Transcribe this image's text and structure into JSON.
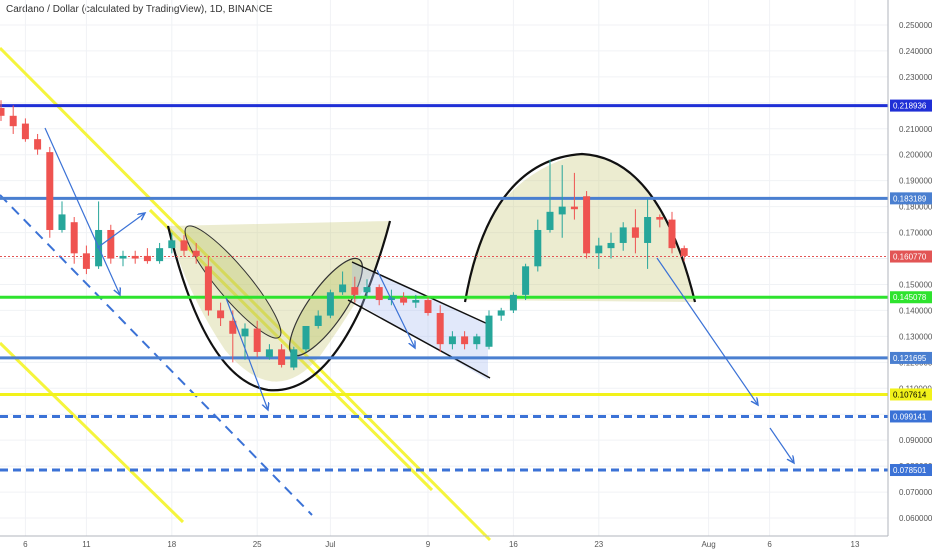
{
  "chart_data": {
    "type": "candlestick",
    "title": "Cardano / Dollar (calculated by TradingView), 1D, BINANCE",
    "ylim": [
      0.055,
      0.255
    ],
    "y_ticks": [
      "0.250000",
      "0.240000",
      "0.230000",
      "0.220000",
      "0.210000",
      "0.200000",
      "0.190000",
      "0.180000",
      "0.170000",
      "0.160000",
      "0.150000",
      "0.140000",
      "0.130000",
      "0.120000",
      "0.110000",
      "0.100000",
      "0.090000",
      "0.080000",
      "0.070000",
      "0.060000"
    ],
    "x_ticks": [
      "6",
      "11",
      "18",
      "25",
      "Jul",
      "9",
      "16",
      "23",
      "Aug",
      "6",
      "13"
    ],
    "candles": [
      {
        "date": "Jun 4",
        "open": 0.218,
        "high": 0.221,
        "low": 0.213,
        "close": 0.215
      },
      {
        "date": "Jun 5",
        "open": 0.215,
        "high": 0.219,
        "low": 0.208,
        "close": 0.211
      },
      {
        "date": "Jun 6",
        "open": 0.212,
        "high": 0.214,
        "low": 0.205,
        "close": 0.206
      },
      {
        "date": "Jun 7",
        "open": 0.206,
        "high": 0.208,
        "low": 0.2,
        "close": 0.202
      },
      {
        "date": "Jun 8",
        "open": 0.201,
        "high": 0.203,
        "low": 0.168,
        "close": 0.171
      },
      {
        "date": "Jun 9",
        "open": 0.171,
        "high": 0.182,
        "low": 0.17,
        "close": 0.177
      },
      {
        "date": "Jun 10",
        "open": 0.174,
        "high": 0.176,
        "low": 0.158,
        "close": 0.162
      },
      {
        "date": "Jun 11",
        "open": 0.162,
        "high": 0.165,
        "low": 0.154,
        "close": 0.156
      },
      {
        "date": "Jun 12",
        "open": 0.157,
        "high": 0.182,
        "low": 0.156,
        "close": 0.171
      },
      {
        "date": "Jun 13",
        "open": 0.171,
        "high": 0.173,
        "low": 0.158,
        "close": 0.16
      },
      {
        "date": "Jun 14",
        "open": 0.16,
        "high": 0.163,
        "low": 0.157,
        "close": 0.161
      },
      {
        "date": "Jun 15",
        "open": 0.161,
        "high": 0.163,
        "low": 0.158,
        "close": 0.16
      },
      {
        "date": "Jun 16",
        "open": 0.161,
        "high": 0.164,
        "low": 0.158,
        "close": 0.159
      },
      {
        "date": "Jun 17",
        "open": 0.159,
        "high": 0.166,
        "low": 0.158,
        "close": 0.164
      },
      {
        "date": "Jun 18",
        "open": 0.164,
        "high": 0.17,
        "low": 0.162,
        "close": 0.167
      },
      {
        "date": "Jun 19",
        "open": 0.167,
        "high": 0.169,
        "low": 0.161,
        "close": 0.163
      },
      {
        "date": "Jun 20",
        "open": 0.163,
        "high": 0.166,
        "low": 0.158,
        "close": 0.161
      },
      {
        "date": "Jun 21",
        "open": 0.157,
        "high": 0.161,
        "low": 0.138,
        "close": 0.14
      },
      {
        "date": "Jun 22",
        "open": 0.14,
        "high": 0.143,
        "low": 0.134,
        "close": 0.137
      },
      {
        "date": "Jun 23",
        "open": 0.136,
        "high": 0.14,
        "low": 0.12,
        "close": 0.131
      },
      {
        "date": "Jun 24",
        "open": 0.13,
        "high": 0.135,
        "low": 0.121,
        "close": 0.133
      },
      {
        "date": "Jun 25",
        "open": 0.133,
        "high": 0.136,
        "low": 0.122,
        "close": 0.124
      },
      {
        "date": "Jun 26",
        "open": 0.122,
        "high": 0.127,
        "low": 0.121,
        "close": 0.125
      },
      {
        "date": "Jun 27",
        "open": 0.125,
        "high": 0.127,
        "low": 0.118,
        "close": 0.119
      },
      {
        "date": "Jun 28",
        "open": 0.118,
        "high": 0.126,
        "low": 0.117,
        "close": 0.125
      },
      {
        "date": "Jun 29",
        "open": 0.125,
        "high": 0.133,
        "low": 0.124,
        "close": 0.134
      },
      {
        "date": "Jun 30",
        "open": 0.134,
        "high": 0.14,
        "low": 0.133,
        "close": 0.138
      },
      {
        "date": "Jul 1",
        "open": 0.138,
        "high": 0.148,
        "low": 0.137,
        "close": 0.147
      },
      {
        "date": "Jul 2",
        "open": 0.147,
        "high": 0.155,
        "low": 0.146,
        "close": 0.15
      },
      {
        "date": "Jul 3",
        "open": 0.149,
        "high": 0.153,
        "low": 0.143,
        "close": 0.146
      },
      {
        "date": "Jul 4",
        "open": 0.147,
        "high": 0.152,
        "low": 0.145,
        "close": 0.149
      },
      {
        "date": "Jul 5",
        "open": 0.149,
        "high": 0.15,
        "low": 0.142,
        "close": 0.144
      },
      {
        "date": "Jul 6",
        "open": 0.144,
        "high": 0.148,
        "low": 0.142,
        "close": 0.145
      },
      {
        "date": "Jul 7",
        "open": 0.145,
        "high": 0.147,
        "low": 0.142,
        "close": 0.143
      },
      {
        "date": "Jul 8",
        "open": 0.143,
        "high": 0.146,
        "low": 0.141,
        "close": 0.144
      },
      {
        "date": "Jul 9",
        "open": 0.144,
        "high": 0.145,
        "low": 0.138,
        "close": 0.139
      },
      {
        "date": "Jul 10",
        "open": 0.139,
        "high": 0.142,
        "low": 0.124,
        "close": 0.127
      },
      {
        "date": "Jul 11",
        "open": 0.127,
        "high": 0.132,
        "low": 0.125,
        "close": 0.13
      },
      {
        "date": "Jul 12",
        "open": 0.13,
        "high": 0.132,
        "low": 0.125,
        "close": 0.127
      },
      {
        "date": "Jul 13",
        "open": 0.127,
        "high": 0.131,
        "low": 0.125,
        "close": 0.13
      },
      {
        "date": "Jul 14",
        "open": 0.126,
        "high": 0.14,
        "low": 0.125,
        "close": 0.138
      },
      {
        "date": "Jul 15",
        "open": 0.138,
        "high": 0.141,
        "low": 0.136,
        "close": 0.14
      },
      {
        "date": "Jul 16",
        "open": 0.14,
        "high": 0.147,
        "low": 0.139,
        "close": 0.146
      },
      {
        "date": "Jul 17",
        "open": 0.146,
        "high": 0.158,
        "low": 0.144,
        "close": 0.157
      },
      {
        "date": "Jul 18",
        "open": 0.157,
        "high": 0.175,
        "low": 0.155,
        "close": 0.171
      },
      {
        "date": "Jul 19",
        "open": 0.171,
        "high": 0.198,
        "low": 0.17,
        "close": 0.178
      },
      {
        "date": "Jul 20",
        "open": 0.177,
        "high": 0.196,
        "low": 0.168,
        "close": 0.18
      },
      {
        "date": "Jul 21",
        "open": 0.18,
        "high": 0.193,
        "low": 0.175,
        "close": 0.179
      },
      {
        "date": "Jul 22",
        "open": 0.184,
        "high": 0.186,
        "low": 0.16,
        "close": 0.162
      },
      {
        "date": "Jul 23",
        "open": 0.162,
        "high": 0.168,
        "low": 0.156,
        "close": 0.165
      },
      {
        "date": "Jul 24",
        "open": 0.164,
        "high": 0.17,
        "low": 0.16,
        "close": 0.166
      },
      {
        "date": "Jul 25",
        "open": 0.166,
        "high": 0.174,
        "low": 0.163,
        "close": 0.172
      },
      {
        "date": "Jul 26",
        "open": 0.172,
        "high": 0.179,
        "low": 0.162,
        "close": 0.168
      },
      {
        "date": "Jul 27",
        "open": 0.166,
        "high": 0.183,
        "low": 0.156,
        "close": 0.176
      },
      {
        "date": "Jul 28",
        "open": 0.176,
        "high": 0.177,
        "low": 0.172,
        "close": 0.175
      },
      {
        "date": "Jul 29",
        "open": 0.175,
        "high": 0.178,
        "low": 0.162,
        "close": 0.164
      },
      {
        "date": "Jul 30",
        "open": 0.164,
        "high": 0.165,
        "low": 0.159,
        "close": 0.161
      }
    ],
    "horizontal_levels": [
      {
        "label": "0.218936",
        "value": 0.218936,
        "color": "#1f2fd6",
        "style": "solid"
      },
      {
        "label": "0.183189",
        "value": 0.183189,
        "color": "#4a7fd0",
        "style": "solid"
      },
      {
        "label": "0.160770",
        "value": 0.16077,
        "color": "#e25555",
        "style": "dotted"
      },
      {
        "label": "0.145078",
        "value": 0.145078,
        "color": "#2ee32e",
        "style": "solid"
      },
      {
        "label": "0.121695",
        "value": 0.121695,
        "color": "#4a7fd0",
        "style": "solid"
      },
      {
        "label": "0.107614",
        "value": 0.107614,
        "color": "#f2f21a",
        "style": "solid"
      },
      {
        "label": "0.099141",
        "value": 0.099141,
        "color": "#3b72d6",
        "style": "dashed"
      },
      {
        "label": "0.078501",
        "value": 0.078501,
        "color": "#3b72d6",
        "style": "dashed"
      }
    ],
    "colors": {
      "up": "#26a69a",
      "down": "#ef5350",
      "wick_up": "#26a69a",
      "wick_down": "#ef5350"
    }
  }
}
